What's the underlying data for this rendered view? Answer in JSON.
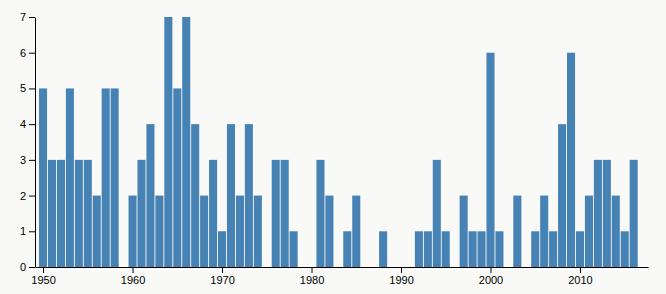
{
  "chart_data": {
    "type": "bar",
    "x": [
      1950,
      1951,
      1952,
      1953,
      1954,
      1955,
      1956,
      1957,
      1958,
      1959,
      1960,
      1961,
      1962,
      1963,
      1964,
      1965,
      1966,
      1967,
      1968,
      1969,
      1970,
      1971,
      1972,
      1973,
      1974,
      1975,
      1976,
      1977,
      1978,
      1979,
      1980,
      1981,
      1982,
      1983,
      1984,
      1985,
      1986,
      1987,
      1988,
      1989,
      1990,
      1991,
      1992,
      1993,
      1994,
      1995,
      1996,
      1997,
      1998,
      1999,
      2000,
      2001,
      2002,
      2003,
      2004,
      2005,
      2006,
      2007,
      2008,
      2009,
      2010,
      2011,
      2012,
      2013,
      2014,
      2015,
      2016
    ],
    "values": [
      5,
      3,
      3,
      5,
      3,
      3,
      2,
      5,
      5,
      0,
      2,
      3,
      4,
      2,
      7,
      5,
      7,
      4,
      2,
      3,
      1,
      4,
      2,
      4,
      2,
      0,
      3,
      3,
      1,
      0,
      0,
      3,
      2,
      0,
      1,
      2,
      0,
      0,
      1,
      0,
      0,
      0,
      1,
      1,
      3,
      1,
      0,
      2,
      1,
      1,
      6,
      1,
      0,
      2,
      0,
      1,
      2,
      1,
      4,
      6,
      1,
      2,
      3,
      3,
      2,
      1,
      3
    ],
    "color": "#4682b4",
    "xlim": [
      1949.1,
      2017.6
    ],
    "xticks": [
      1950,
      1960,
      1970,
      1980,
      1990,
      2000,
      2010
    ],
    "ylim": [
      0,
      7
    ],
    "yticks": [
      0,
      1,
      2,
      3,
      4,
      5,
      6,
      7
    ]
  }
}
